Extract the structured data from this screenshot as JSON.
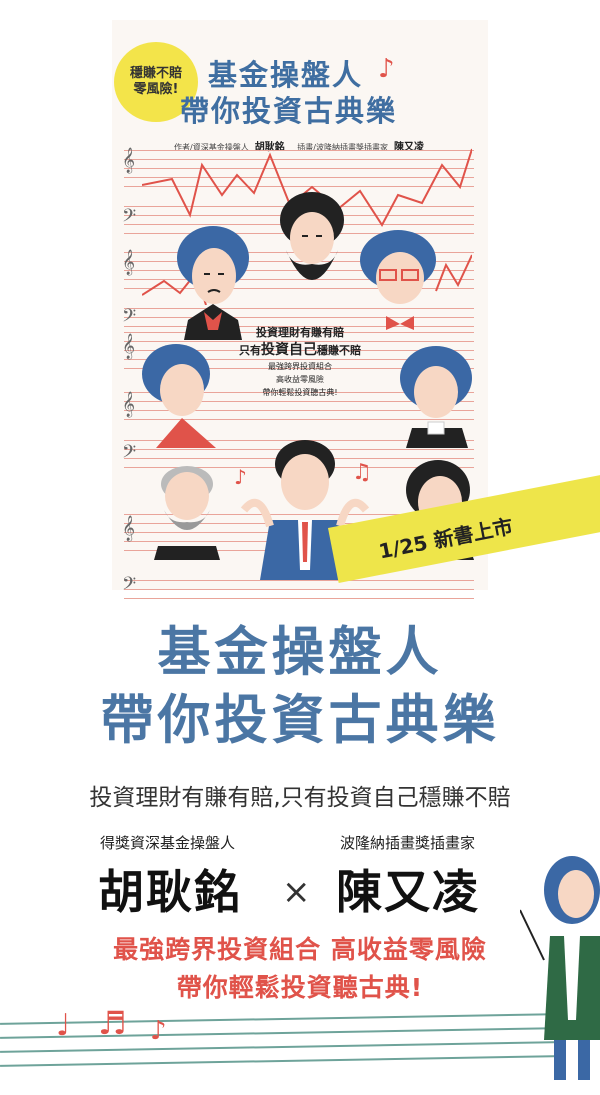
{
  "cover": {
    "bubble_line1": "穩賺不賠",
    "bubble_line2": "零風險!",
    "title_line1": "基金操盤人",
    "title_line2": "帶你投資古典樂",
    "author_role": "作者/資深基金操盤人",
    "author_name": "胡耿銘",
    "illustrator_role": "插畫/波隆納插畫獎插畫家",
    "illustrator_name": "陳又凌",
    "center_line1": "投資理財有賺有賠",
    "center_line2a": "只有",
    "center_line2b": "投資自己",
    "center_line2c": "穩賺不賠",
    "center_small1": "最強跨界投資組合",
    "center_small2": "高收益零風險",
    "center_small3": "帶你輕鬆投資聽古典!"
  },
  "ribbon": "1/25 新書上市",
  "title_line1": "基金操盤人",
  "title_line2": "帶你投資古典樂",
  "tagline": "投資理財有賺有賠,只有投資自己穩賺不賠",
  "author": {
    "role": "得獎資深基金操盤人",
    "name": "胡耿銘"
  },
  "times": "×",
  "illustrator": {
    "role": "波隆納插畫獎插畫家",
    "name": "陳又凌"
  },
  "promo_line1": "最強跨界投資組合 高收益零風險",
  "promo_line2": "帶你輕鬆投資聽古典!",
  "colors": {
    "title_blue": "#4b76a4",
    "ribbon_yellow": "#eee54a",
    "promo_red": "#e0534a"
  }
}
